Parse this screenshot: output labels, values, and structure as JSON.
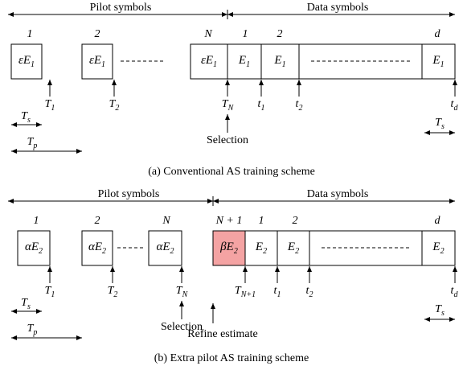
{
  "panels": [
    {
      "header": {
        "pilot": "Pilot symbols",
        "data": "Data symbols"
      },
      "indices": [
        "1",
        "2",
        "N",
        "1",
        "2",
        "d"
      ],
      "boxes": [
        {
          "main": "εE",
          "sub": "1"
        },
        {
          "main": "εE",
          "sub": "1"
        },
        {
          "main": "εE",
          "sub": "1"
        },
        {
          "main": "E",
          "sub": "1"
        },
        {
          "main": "E",
          "sub": "1"
        },
        {
          "main": "E",
          "sub": "1"
        }
      ],
      "times": [
        {
          "main": "T",
          "sub": "1"
        },
        {
          "main": "T",
          "sub": "2"
        },
        {
          "main": "T",
          "sub": "N"
        },
        {
          "main": "t",
          "sub": "1"
        },
        {
          "main": "t",
          "sub": "2"
        },
        {
          "main": "t",
          "sub": "d"
        }
      ],
      "intervals": {
        "ts_left": {
          "main": "T",
          "sub": "s"
        },
        "ts_right": {
          "main": "T",
          "sub": "s"
        },
        "tp": {
          "main": "T",
          "sub": "p"
        }
      },
      "selection": "Selection",
      "caption": "(a) Conventional AS training scheme"
    },
    {
      "header": {
        "pilot": "Pilot symbols",
        "data": "Data symbols"
      },
      "indices": [
        "1",
        "2",
        "N",
        "N + 1",
        "1",
        "2",
        "d"
      ],
      "boxes": [
        {
          "main": "αE",
          "sub": "2"
        },
        {
          "main": "αE",
          "sub": "2"
        },
        {
          "main": "αE",
          "sub": "2"
        },
        {
          "main": "βE",
          "sub": "2"
        },
        {
          "main": "E",
          "sub": "2"
        },
        {
          "main": "E",
          "sub": "2"
        },
        {
          "main": "E",
          "sub": "2"
        }
      ],
      "times": [
        {
          "main": "T",
          "sub": "1"
        },
        {
          "main": "T",
          "sub": "2"
        },
        {
          "main": "T",
          "sub": "N"
        },
        {
          "main": "T",
          "sub": "N+1"
        },
        {
          "main": "t",
          "sub": "1"
        },
        {
          "main": "t",
          "sub": "2"
        },
        {
          "main": "t",
          "sub": "d"
        }
      ],
      "intervals": {
        "ts_left": {
          "main": "T",
          "sub": "s"
        },
        "ts_right": {
          "main": "T",
          "sub": "s"
        },
        "tp": {
          "main": "T",
          "sub": "p"
        }
      },
      "selection": "Selection",
      "refine": "Refine estimate",
      "caption": "(b) Extra pilot AS training scheme"
    }
  ]
}
